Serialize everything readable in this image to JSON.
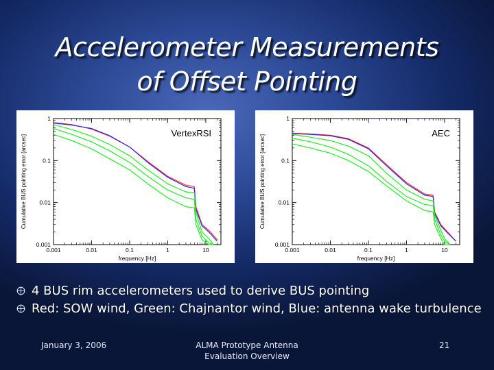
{
  "slide": {
    "title_line1": "Accelerometer Measurements",
    "title_line2": "of Offset Pointing",
    "bullets": [
      "4 BUS rim accelerometers used to derive BUS pointing",
      "Red: SOW wind, Green: Chajnantor wind, Blue: antenna wake turbulence"
    ],
    "footer": {
      "date": "January 3, 2006",
      "center_line1": "ALMA Prototype Antenna",
      "center_line2": "Evaluation Overview",
      "page": "21"
    }
  },
  "colors": {
    "red": "#ff2a2a",
    "green": "#22ee22",
    "blue": "#2626ee"
  },
  "chart_data": [
    {
      "type": "line",
      "title": "VertexRSI",
      "xlabel": "frequency [Hz]",
      "ylabel": "Cumulative BUS pointing error [arcsec]",
      "xscale": "log",
      "yscale": "log",
      "xlim": [
        0.001,
        25
      ],
      "ylim": [
        0.001,
        1
      ],
      "xticks": [
        0.001,
        0.01,
        0.1,
        1,
        10
      ],
      "xtick_labels": [
        "0.001",
        "0.01",
        "0.1",
        "1",
        "10"
      ],
      "yticks": [
        0.001,
        0.01,
        0.1,
        1
      ],
      "ytick_labels": [
        "0.001",
        "0.01",
        "0.1",
        "1"
      ],
      "series": [
        {
          "color": "red",
          "x": [
            0.001,
            0.003,
            0.01,
            0.03,
            0.1,
            0.3,
            1,
            3,
            5,
            5.5,
            8,
            12,
            20
          ],
          "values": [
            0.8,
            0.72,
            0.56,
            0.38,
            0.21,
            0.095,
            0.042,
            0.026,
            0.024,
            0.008,
            0.003,
            0.0022,
            0.0013
          ]
        },
        {
          "color": "blue",
          "x": [
            0.001,
            0.003,
            0.01,
            0.03,
            0.1,
            0.3,
            1,
            3,
            5,
            5.5,
            8,
            12,
            20
          ],
          "values": [
            0.78,
            0.7,
            0.58,
            0.39,
            0.21,
            0.09,
            0.04,
            0.024,
            0.022,
            0.007,
            0.0028,
            0.002,
            0.0012
          ]
        },
        {
          "color": "green",
          "x": [
            0.001,
            0.003,
            0.01,
            0.03,
            0.1,
            0.3,
            1,
            3,
            5,
            5.5,
            8,
            12,
            16
          ],
          "values": [
            0.72,
            0.55,
            0.38,
            0.24,
            0.13,
            0.06,
            0.028,
            0.018,
            0.017,
            0.006,
            0.002,
            0.0014,
            0.001
          ]
        },
        {
          "color": "green",
          "x": [
            0.001,
            0.003,
            0.01,
            0.03,
            0.1,
            0.3,
            1,
            3,
            5,
            5.5,
            8,
            12,
            16
          ],
          "values": [
            0.58,
            0.42,
            0.28,
            0.17,
            0.09,
            0.042,
            0.02,
            0.013,
            0.012,
            0.004,
            0.0016,
            0.0011,
            0.001
          ]
        },
        {
          "color": "green",
          "x": [
            0.001,
            0.003,
            0.01,
            0.03,
            0.1,
            0.3,
            1,
            3,
            5,
            5.5,
            8,
            12,
            16
          ],
          "values": [
            0.42,
            0.3,
            0.19,
            0.11,
            0.06,
            0.028,
            0.013,
            0.008,
            0.0075,
            0.003,
            0.0013,
            0.001,
            0.001
          ]
        }
      ]
    },
    {
      "type": "line",
      "title": "AEC",
      "xlabel": "frequency [Hz]",
      "ylabel": "Cumulative BUS pointing error [arcsec]",
      "xscale": "log",
      "yscale": "log",
      "xlim": [
        0.001,
        25
      ],
      "ylim": [
        0.001,
        1
      ],
      "xticks": [
        0.001,
        0.01,
        0.1,
        1,
        10
      ],
      "xtick_labels": [
        "0.001",
        "0.01",
        "0.1",
        "1",
        "10"
      ],
      "yticks": [
        0.001,
        0.01,
        0.1,
        1
      ],
      "ytick_labels": [
        "0.001",
        "0.01",
        "0.1",
        "1"
      ],
      "series": [
        {
          "color": "red",
          "x": [
            0.001,
            0.003,
            0.01,
            0.03,
            0.1,
            0.3,
            1,
            3,
            5,
            5.5,
            8,
            12,
            20
          ],
          "values": [
            0.45,
            0.43,
            0.4,
            0.33,
            0.2,
            0.08,
            0.03,
            0.016,
            0.015,
            0.006,
            0.003,
            0.002,
            0.0012
          ]
        },
        {
          "color": "blue",
          "x": [
            0.001,
            0.003,
            0.01,
            0.03,
            0.1,
            0.3,
            1,
            3,
            5,
            5.5,
            8,
            12,
            20
          ],
          "values": [
            0.44,
            0.42,
            0.39,
            0.32,
            0.19,
            0.075,
            0.028,
            0.015,
            0.014,
            0.0055,
            0.0028,
            0.0019,
            0.0012
          ]
        },
        {
          "color": "green",
          "x": [
            0.001,
            0.003,
            0.01,
            0.03,
            0.1,
            0.3,
            1,
            3,
            5,
            5.5,
            8,
            10,
            14
          ],
          "values": [
            0.42,
            0.36,
            0.3,
            0.22,
            0.13,
            0.05,
            0.02,
            0.012,
            0.011,
            0.005,
            0.0022,
            0.0014,
            0.001
          ]
        },
        {
          "color": "green",
          "x": [
            0.001,
            0.003,
            0.01,
            0.03,
            0.1,
            0.3,
            1,
            3,
            5,
            5.5,
            8,
            10,
            14
          ],
          "values": [
            0.34,
            0.28,
            0.21,
            0.14,
            0.075,
            0.032,
            0.014,
            0.009,
            0.0085,
            0.004,
            0.0017,
            0.0012,
            0.001
          ]
        },
        {
          "color": "green",
          "x": [
            0.001,
            0.003,
            0.01,
            0.03,
            0.1,
            0.3,
            1,
            3,
            5,
            5.5,
            8,
            10,
            14
          ],
          "values": [
            0.25,
            0.2,
            0.15,
            0.1,
            0.055,
            0.025,
            0.011,
            0.0065,
            0.006,
            0.003,
            0.0014,
            0.001,
            0.001
          ]
        }
      ]
    }
  ]
}
